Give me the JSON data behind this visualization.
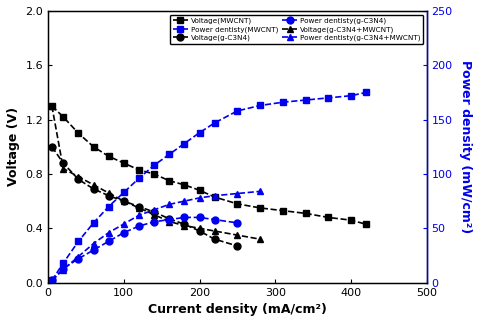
{
  "voltage_MWCNT_x": [
    5,
    20,
    40,
    60,
    80,
    100,
    120,
    140,
    160,
    180,
    200,
    220,
    250,
    280,
    310,
    340,
    370,
    400,
    420
  ],
  "voltage_MWCNT_y": [
    1.3,
    1.22,
    1.1,
    1.0,
    0.93,
    0.88,
    0.83,
    0.8,
    0.75,
    0.72,
    0.68,
    0.63,
    0.58,
    0.55,
    0.53,
    0.51,
    0.48,
    0.46,
    0.43
  ],
  "voltage_gC3N4_x": [
    5,
    20,
    40,
    60,
    80,
    100,
    120,
    140,
    160,
    180,
    200,
    220,
    250
  ],
  "voltage_gC3N4_y": [
    1.0,
    0.88,
    0.76,
    0.69,
    0.64,
    0.6,
    0.56,
    0.52,
    0.47,
    0.43,
    0.38,
    0.32,
    0.27
  ],
  "voltage_gC3N4_MWCNT_x": [
    5,
    20,
    40,
    60,
    80,
    100,
    120,
    140,
    160,
    180,
    200,
    220,
    250,
    280
  ],
  "voltage_gC3N4_MWCNT_y": [
    1.3,
    0.84,
    0.78,
    0.72,
    0.66,
    0.6,
    0.55,
    0.5,
    0.45,
    0.42,
    0.4,
    0.38,
    0.35,
    0.32
  ],
  "power_MWCNT_x": [
    5,
    20,
    40,
    60,
    80,
    100,
    120,
    140,
    160,
    180,
    200,
    220,
    250,
    280,
    310,
    340,
    370,
    400,
    420
  ],
  "power_MWCNT_y": [
    2,
    18,
    38,
    55,
    70,
    83,
    96,
    108,
    118,
    128,
    138,
    147,
    158,
    163,
    166,
    168,
    170,
    172,
    175
  ],
  "power_gC3N4_x": [
    5,
    20,
    40,
    60,
    80,
    100,
    120,
    140,
    160,
    180,
    200,
    220,
    250
  ],
  "power_gC3N4_y": [
    2,
    13,
    22,
    30,
    38,
    46,
    52,
    56,
    58,
    60,
    60,
    58,
    55
  ],
  "power_gC3N4_MWCNT_x": [
    5,
    20,
    40,
    60,
    80,
    100,
    120,
    140,
    160,
    180,
    200,
    220,
    250,
    280
  ],
  "power_gC3N4_MWCNT_y": [
    2,
    12,
    24,
    36,
    46,
    54,
    62,
    67,
    72,
    75,
    78,
    80,
    82,
    84
  ],
  "xlim": [
    0,
    500
  ],
  "ylim_left": [
    0,
    2.0
  ],
  "ylim_right": [
    0,
    250
  ],
  "xlabel": "Current density (mA/cm²)",
  "ylabel_left": "Voltage (V)",
  "ylabel_right": "Power density (mW/cm²)",
  "legend_voltage_MWCNT": "Voltage(MWCNT)",
  "legend_voltage_gC3N4": "Voltage(g-C3N4)",
  "legend_voltage_gC3N4_MWCNT": "Voltage(g-C3N4+MWCNT)",
  "legend_power_MWCNT": "Power dentisty(MWCNT)",
  "legend_power_gC3N4": "Power dentisty(g-C3N4)",
  "legend_power_gC3N4_MWCNT": "Power dentisty(g-C3N4+MWCNT)",
  "black_color": "#000000",
  "blue_color": "#0000EE",
  "fig_width": 4.79,
  "fig_height": 3.23,
  "dpi": 100
}
